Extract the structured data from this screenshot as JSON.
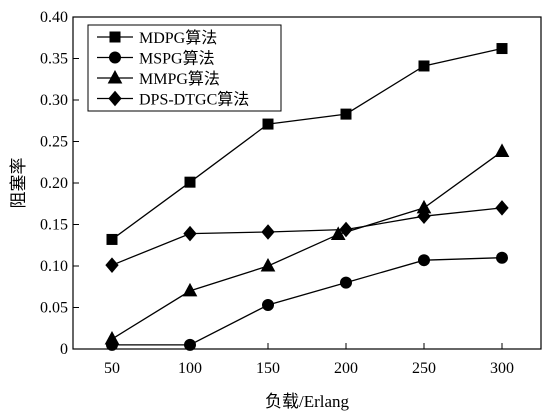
{
  "chart_data": {
    "type": "line",
    "title": "",
    "xlabel": "负载/Erlang",
    "ylabel": "阻塞率",
    "x": [
      50,
      100,
      150,
      200,
      250,
      300
    ],
    "xlim": [
      25,
      325
    ],
    "ylim": [
      0,
      0.4
    ],
    "xticks": [
      "50",
      "100",
      "150",
      "200",
      "250",
      "300"
    ],
    "yticks": [
      "0",
      "0.05",
      "0.10",
      "0.15",
      "0.20",
      "0.25",
      "0.30",
      "0.35",
      "0.40"
    ],
    "grid": false,
    "legend_position": "top-left",
    "series": [
      {
        "name": "MDPG算法",
        "marker": "square",
        "x": [
          50,
          100,
          150,
          200,
          250,
          300
        ],
        "values": [
          0.132,
          0.201,
          0.271,
          0.283,
          0.341,
          0.362
        ]
      },
      {
        "name": "MSPG算法",
        "marker": "circle",
        "x": [
          50,
          100,
          150,
          200,
          250,
          300
        ],
        "values": [
          0.005,
          0.005,
          0.053,
          0.08,
          0.107,
          0.11
        ]
      },
      {
        "name": "MMPG算法",
        "marker": "triangle",
        "x": [
          50,
          100,
          150,
          195,
          250,
          300
        ],
        "values": [
          0.012,
          0.07,
          0.1,
          0.138,
          0.17,
          0.238
        ]
      },
      {
        "name": "DPS-DTGC算法",
        "marker": "diamond",
        "x": [
          50,
          100,
          150,
          200,
          250,
          300
        ],
        "values": [
          0.101,
          0.139,
          0.141,
          0.144,
          0.16,
          0.17
        ]
      }
    ],
    "line_color": "#000000"
  }
}
